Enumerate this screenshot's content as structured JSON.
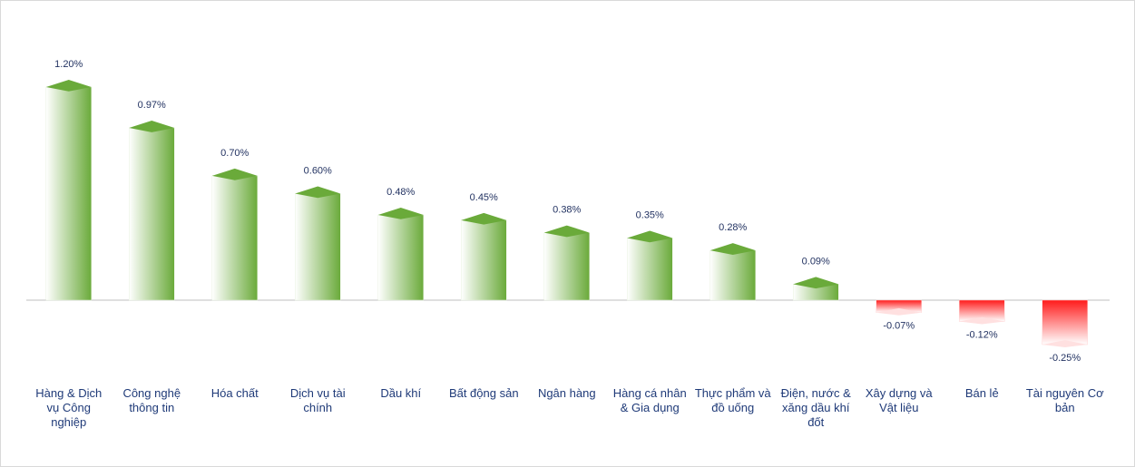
{
  "chart_data": {
    "type": "bar",
    "categories": [
      "Hàng & Dịch vụ Công nghiệp",
      "Công nghệ thông tin",
      "Hóa chất",
      "Dịch vụ tài chính",
      "Dầu khí",
      "Bất động sản",
      "Ngân hàng",
      "Hàng cá nhân & Gia dụng",
      "Thực phẩm và đồ uống",
      "Điện, nước & xăng dầu khí đốt",
      "Xây dựng và Vật liệu",
      "Bán lẻ",
      "Tài nguyên Cơ bản"
    ],
    "values": [
      1.2,
      0.97,
      0.7,
      0.6,
      0.48,
      0.45,
      0.38,
      0.35,
      0.28,
      0.09,
      -0.07,
      -0.12,
      -0.25
    ],
    "value_labels": [
      "1.20%",
      "0.97%",
      "0.70%",
      "0.60%",
      "0.48%",
      "0.45%",
      "0.38%",
      "0.35%",
      "0.28%",
      "0.09%",
      "-0.07%",
      "-0.12%",
      "-0.25%"
    ],
    "color_positive": "#6aaa3a",
    "color_negative": "#ff1a1a"
  }
}
